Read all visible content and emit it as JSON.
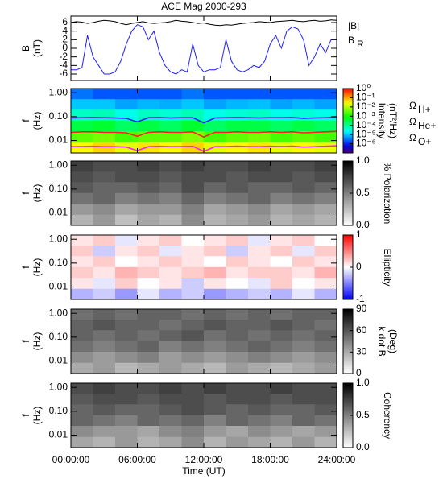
{
  "chart_data": [
    {
      "type": "line",
      "title": "ACE Mag 2000-293",
      "ylabel": [
        "B",
        "(nT)"
      ],
      "x": [
        0,
        0.5,
        1,
        1.5,
        2,
        2.5,
        3,
        3.5,
        4,
        4.5,
        5,
        5.5,
        6,
        6.5,
        7,
        7.5,
        8,
        8.5,
        9,
        9.5,
        10,
        10.5,
        11,
        11.5,
        12,
        12.5,
        13,
        13.5,
        14,
        14.5,
        15,
        15.5,
        16,
        16.5,
        17,
        17.5,
        18,
        18.5,
        19,
        19.5,
        20,
        20.5,
        21,
        21.5,
        22,
        22.5,
        23,
        23.5,
        24
      ],
      "xlim": [
        0,
        24
      ],
      "xticks": [
        0,
        6,
        12,
        18,
        24
      ],
      "ylim": [
        -7.5,
        7.5
      ],
      "yticks": [
        -6,
        -4,
        -2,
        0,
        2,
        4,
        6
      ],
      "series": [
        {
          "name": "|B|",
          "color": "#000000",
          "values": [
            6,
            6.2,
            6.1,
            5.8,
            6,
            6.3,
            6.5,
            6.4,
            6.2,
            5.8,
            5.5,
            5.8,
            6,
            6.2,
            5.9,
            5.8,
            5.9,
            6,
            6.2,
            6.5,
            6.3,
            6.2,
            6,
            5.8,
            5.9,
            5.6,
            5.4,
            5.3,
            5.5,
            5.4,
            5.6,
            5.8,
            5.9,
            6,
            6.2,
            6.1,
            6,
            6.2,
            6.3,
            6.4,
            6.5,
            6.3,
            6.2,
            6.4,
            6.5,
            6.3,
            6.4,
            6.6,
            6.5
          ]
        },
        {
          "name": "B",
          "name_sub": "R",
          "color": "#1f1fff",
          "values": [
            -5,
            -5,
            -4.5,
            3,
            -2,
            -4,
            -6,
            -6,
            -5.5,
            -3,
            1,
            4,
            5.5,
            5,
            2,
            4,
            -1,
            -4,
            -5.5,
            -6,
            -5,
            -5.5,
            1,
            -4,
            -5.5,
            -5,
            -5,
            -4.5,
            2,
            -3,
            -5,
            -5.5,
            -5,
            -4,
            -4.5,
            -3,
            1,
            3,
            0,
            4,
            5,
            4.5,
            2,
            -4,
            -2,
            1,
            -1,
            2,
            2
          ]
        }
      ]
    },
    {
      "type": "heatmap",
      "ylabel": [
        "f",
        "(Hz)"
      ],
      "log_y": true,
      "colormap": "rainbow",
      "log_color": true,
      "clabel": [
        "Intensity",
        "(nT²/Hz)"
      ],
      "clim": [
        1e-07,
        1
      ],
      "cticks": [
        {
          "value": 1,
          "label": "10⁰"
        },
        {
          "value": 0.1,
          "label": "10⁻¹"
        },
        {
          "value": 0.01,
          "label": "10⁻²"
        },
        {
          "value": 0.001,
          "label": "10⁻³"
        },
        {
          "value": 0.0001,
          "label": "10⁻⁴"
        },
        {
          "value": 1e-05,
          "label": "10⁻⁵"
        },
        {
          "value": 1e-06,
          "label": "10⁻⁶"
        }
      ],
      "xlim": [
        0,
        24
      ],
      "xticks": [
        0,
        6,
        12,
        18,
        24
      ],
      "ylim": [
        0.003,
        1.5
      ],
      "yticks": [
        {
          "value": 0.01,
          "label": "0.01"
        },
        {
          "value": 0.1,
          "label": "0.10"
        },
        {
          "value": 1,
          "label": "1.00"
        }
      ],
      "x_bins": [
        0,
        2,
        4,
        6,
        8,
        10,
        12,
        14,
        16,
        18,
        20,
        22,
        24
      ],
      "y_bins": [
        0.003,
        0.0086,
        0.025,
        0.07,
        0.2,
        0.55,
        1.5
      ],
      "z": [
        [
          0.03,
          0.05,
          0.02,
          0.04,
          0.03,
          0.05,
          0.02,
          0.03,
          0.04,
          0.02,
          0.03,
          0.02
        ],
        [
          0.003,
          0.004,
          0.002,
          0.003,
          0.003,
          0.005,
          0.002,
          0.003,
          0.004,
          0.002,
          0.003,
          0.002
        ],
        [
          0.0003,
          0.0004,
          0.0002,
          0.0003,
          0.0002,
          0.0004,
          0.0002,
          0.0003,
          0.0003,
          0.0002,
          0.0003,
          0.0002
        ],
        [
          5e-05,
          6e-05,
          3e-05,
          5e-05,
          4e-05,
          6e-05,
          3e-05,
          4e-05,
          5e-05,
          3e-05,
          4e-05,
          3e-05
        ],
        [
          1e-05,
          1e-05,
          6e-06,
          8e-06,
          7e-06,
          1e-05,
          6e-06,
          8e-06,
          9e-06,
          6e-06,
          8e-06,
          6e-06
        ],
        [
          3e-06,
          2e-06,
          2e-06,
          2e-06,
          2e-06,
          3e-06,
          2e-06,
          2e-06,
          2e-06,
          2e-06,
          2e-06,
          2e-06
        ]
      ],
      "x": [
        0,
        1,
        2,
        3,
        4,
        5,
        6,
        7,
        8,
        9,
        10,
        11,
        12,
        13,
        14,
        15,
        16,
        17,
        18,
        19,
        20,
        21,
        22,
        23,
        24
      ],
      "series": [
        {
          "name": "Ω",
          "name_sub": "H+",
          "color": "#1f1fff",
          "values": [
            0.088,
            0.09,
            0.092,
            0.09,
            0.088,
            0.085,
            0.06,
            0.09,
            0.092,
            0.088,
            0.09,
            0.09,
            0.055,
            0.088,
            0.09,
            0.092,
            0.09,
            0.088,
            0.09,
            0.09,
            0.092,
            0.085,
            0.088,
            0.09,
            0.095
          ]
        },
        {
          "name": "Ω",
          "name_sub": "He+",
          "color": "#ff1f1f",
          "values": [
            0.022,
            0.023,
            0.023,
            0.022,
            0.022,
            0.021,
            0.015,
            0.022,
            0.023,
            0.022,
            0.022,
            0.023,
            0.014,
            0.022,
            0.022,
            0.023,
            0.022,
            0.022,
            0.023,
            0.022,
            0.023,
            0.021,
            0.022,
            0.023,
            0.024
          ]
        },
        {
          "name": "Ω",
          "name_sub": "O+",
          "color": "#ff1fff",
          "values": [
            0.0055,
            0.0056,
            0.0057,
            0.0055,
            0.0055,
            0.0053,
            0.0038,
            0.0055,
            0.0057,
            0.0055,
            0.0056,
            0.0057,
            0.0035,
            0.0055,
            0.0056,
            0.0058,
            0.0056,
            0.0055,
            0.0057,
            0.0056,
            0.0058,
            0.0053,
            0.0055,
            0.0057,
            0.006
          ]
        }
      ]
    },
    {
      "type": "heatmap",
      "ylabel": [
        "f",
        "(Hz)"
      ],
      "log_y": true,
      "colormap": "greys",
      "clabel": [
        "% Polarization"
      ],
      "clim": [
        0,
        1
      ],
      "cticks": [
        {
          "value": 0,
          "label": "0.0"
        },
        {
          "value": 0.5,
          "label": "0.5"
        },
        {
          "value": 1,
          "label": "1.0"
        }
      ],
      "xlim": [
        0,
        24
      ],
      "xticks": [
        0,
        6,
        12,
        18,
        24
      ],
      "ylim": [
        0.003,
        1.5
      ],
      "yticks": [
        {
          "value": 0.01,
          "label": "0.01"
        },
        {
          "value": 0.1,
          "label": "0.10"
        },
        {
          "value": 1,
          "label": "1.00"
        }
      ],
      "x_bins": [
        0,
        2,
        4,
        6,
        8,
        10,
        12,
        14,
        16,
        18,
        20,
        22,
        24
      ],
      "y_bins": [
        0.003,
        0.0086,
        0.025,
        0.07,
        0.2,
        0.55,
        1.5
      ],
      "z": [
        [
          0.3,
          0.4,
          0.25,
          0.35,
          0.3,
          0.45,
          0.3,
          0.35,
          0.4,
          0.3,
          0.35,
          0.3
        ],
        [
          0.4,
          0.45,
          0.35,
          0.4,
          0.4,
          0.5,
          0.35,
          0.4,
          0.45,
          0.35,
          0.4,
          0.35
        ],
        [
          0.55,
          0.6,
          0.5,
          0.55,
          0.5,
          0.6,
          0.5,
          0.55,
          0.6,
          0.5,
          0.55,
          0.5
        ],
        [
          0.65,
          0.6,
          0.6,
          0.65,
          0.6,
          0.7,
          0.6,
          0.65,
          0.6,
          0.6,
          0.65,
          0.6
        ],
        [
          0.7,
          0.65,
          0.7,
          0.7,
          0.65,
          0.7,
          0.7,
          0.65,
          0.7,
          0.7,
          0.65,
          0.7
        ],
        [
          0.75,
          0.7,
          0.7,
          0.75,
          0.7,
          0.75,
          0.7,
          0.7,
          0.75,
          0.7,
          0.7,
          0.75
        ]
      ]
    },
    {
      "type": "heatmap",
      "ylabel": [
        "f",
        "(Hz)"
      ],
      "log_y": true,
      "colormap": "bwr",
      "clabel": [
        "Ellipticity"
      ],
      "clim": [
        -1,
        1
      ],
      "cticks": [
        -1,
        0,
        1
      ],
      "xlim": [
        0,
        24
      ],
      "xticks": [
        0,
        6,
        12,
        18,
        24
      ],
      "ylim": [
        0.003,
        1.5
      ],
      "yticks": [
        {
          "value": 0.01,
          "label": "0.01"
        },
        {
          "value": 0.1,
          "label": "0.10"
        },
        {
          "value": 1,
          "label": "1.00"
        }
      ],
      "x_bins": [
        0,
        2,
        4,
        6,
        8,
        10,
        12,
        14,
        16,
        18,
        20,
        22,
        24
      ],
      "y_bins": [
        0.003,
        0.0086,
        0.025,
        0.07,
        0.2,
        0.55,
        1.5
      ],
      "z": [
        [
          -0.3,
          -0.2,
          -0.4,
          -0.1,
          -0.3,
          -0.2,
          -0.4,
          -0.3,
          -0.2,
          -0.3,
          -0.1,
          -0.3
        ],
        [
          0.1,
          -0.1,
          0.2,
          0,
          0.1,
          -0.2,
          0.1,
          0,
          -0.1,
          0.2,
          0,
          0.1
        ],
        [
          0.2,
          0.1,
          0.3,
          0.2,
          0.1,
          0.2,
          0.3,
          0.1,
          0.2,
          0.2,
          0.1,
          0.3
        ],
        [
          0.1,
          0.2,
          0,
          0.1,
          0.2,
          0.1,
          0,
          0.2,
          0.1,
          0,
          0.2,
          0.1
        ],
        [
          0.2,
          -0.2,
          0.1,
          0.2,
          -0.1,
          0.1,
          0.2,
          -0.2,
          0.1,
          0.2,
          -0.1,
          0.2
        ],
        [
          0.1,
          0.2,
          -0.1,
          0.1,
          0.2,
          0,
          0.1,
          0.2,
          -0.1,
          0.1,
          0.2,
          0
        ]
      ]
    },
    {
      "type": "heatmap",
      "ylabel": [
        "f",
        "(Hz)"
      ],
      "log_y": true,
      "colormap": "greys",
      "clabel": [
        "k dot B",
        "(Deg)"
      ],
      "clim": [
        0,
        90
      ],
      "cticks": [
        0,
        30,
        60,
        90
      ],
      "xlim": [
        0,
        24
      ],
      "xticks": [
        0,
        6,
        12,
        18,
        24
      ],
      "ylim": [
        0.003,
        1.5
      ],
      "yticks": [
        {
          "value": 0.01,
          "label": "0.01"
        },
        {
          "value": 0.1,
          "label": "0.10"
        },
        {
          "value": 1,
          "label": "1.00"
        }
      ],
      "x_bins": [
        0,
        2,
        4,
        6,
        8,
        10,
        12,
        14,
        16,
        18,
        20,
        22,
        24
      ],
      "y_bins": [
        0.003,
        0.0086,
        0.025,
        0.07,
        0.2,
        0.55,
        1.5
      ],
      "z": [
        [
          30,
          35,
          25,
          30,
          35,
          30,
          25,
          35,
          30,
          25,
          30,
          35
        ],
        [
          40,
          35,
          40,
          45,
          35,
          40,
          35,
          40,
          45,
          40,
          35,
          40
        ],
        [
          50,
          45,
          50,
          55,
          45,
          50,
          45,
          50,
          55,
          50,
          45,
          50
        ],
        [
          55,
          50,
          55,
          50,
          55,
          60,
          50,
          55,
          50,
          55,
          50,
          55
        ],
        [
          55,
          60,
          55,
          55,
          50,
          55,
          60,
          55,
          55,
          60,
          55,
          50
        ],
        [
          50,
          55,
          50,
          55,
          55,
          50,
          55,
          50,
          55,
          50,
          55,
          55
        ]
      ]
    },
    {
      "type": "heatmap",
      "ylabel": [
        "f",
        "(Hz)"
      ],
      "log_y": true,
      "colormap": "greys",
      "clabel": [
        "Coherency"
      ],
      "clim": [
        0,
        1
      ],
      "cticks": [
        {
          "value": 0,
          "label": "0.0"
        },
        {
          "value": 0.5,
          "label": "0.5"
        },
        {
          "value": 1,
          "label": "1.0"
        }
      ],
      "xlabel": "Time (UT)",
      "xlim": [
        0,
        24
      ],
      "xticks": [
        {
          "value": 0,
          "label": "00:00:00"
        },
        {
          "value": 6,
          "label": "06:00:00"
        },
        {
          "value": 12,
          "label": "12:00:00"
        },
        {
          "value": 18,
          "label": "18:00:00"
        },
        {
          "value": 24,
          "label": "24:00:00"
        }
      ],
      "ylim": [
        0.003,
        1.5
      ],
      "yticks": [
        {
          "value": 0.01,
          "label": "0.01"
        },
        {
          "value": 0.1,
          "label": "0.10"
        },
        {
          "value": 1,
          "label": "1.00"
        }
      ],
      "x_bins": [
        0,
        2,
        4,
        6,
        8,
        10,
        12,
        14,
        16,
        18,
        20,
        22,
        24
      ],
      "y_bins": [
        0.003,
        0.0086,
        0.025,
        0.07,
        0.2,
        0.55,
        1.5
      ],
      "z": [
        [
          0.35,
          0.3,
          0.4,
          0.3,
          0.35,
          0.45,
          0.3,
          0.4,
          0.35,
          0.3,
          0.4,
          0.3
        ],
        [
          0.45,
          0.4,
          0.4,
          0.35,
          0.45,
          0.5,
          0.4,
          0.35,
          0.45,
          0.4,
          0.35,
          0.4
        ],
        [
          0.6,
          0.55,
          0.5,
          0.6,
          0.55,
          0.6,
          0.5,
          0.6,
          0.55,
          0.5,
          0.6,
          0.55
        ],
        [
          0.6,
          0.65,
          0.6,
          0.6,
          0.65,
          0.7,
          0.65,
          0.6,
          0.65,
          0.6,
          0.6,
          0.65
        ],
        [
          0.65,
          0.7,
          0.7,
          0.65,
          0.7,
          0.7,
          0.65,
          0.7,
          0.7,
          0.65,
          0.7,
          0.7
        ],
        [
          0.7,
          0.75,
          0.7,
          0.7,
          0.75,
          0.7,
          0.75,
          0.7,
          0.7,
          0.75,
          0.7,
          0.7
        ]
      ]
    }
  ]
}
